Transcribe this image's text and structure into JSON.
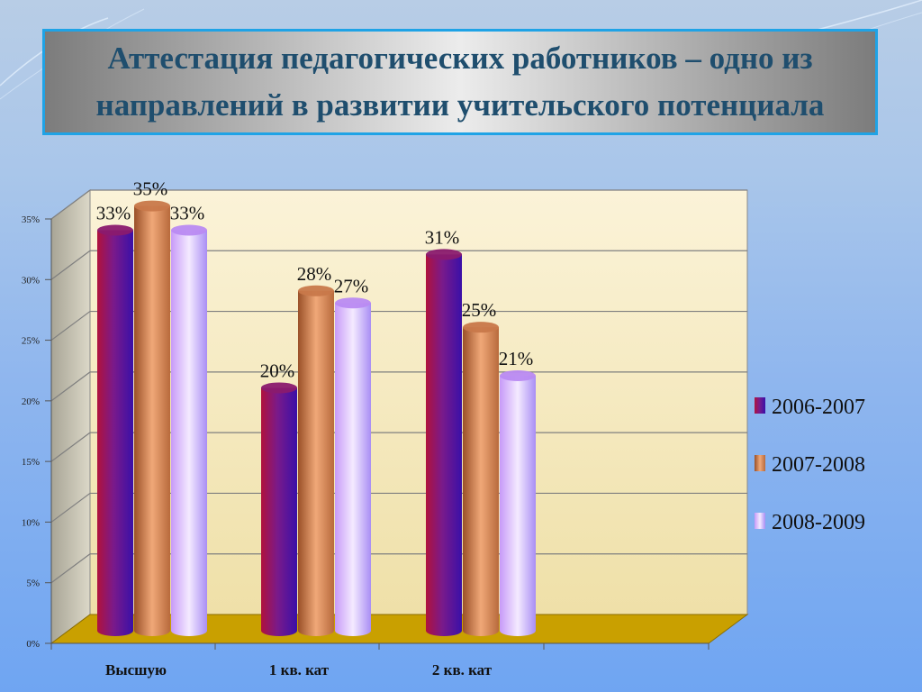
{
  "slide": {
    "title": "Аттестация педагогических работников – одно из направлений в развитии учительского потенциала"
  },
  "chart_data": {
    "type": "bar",
    "categories": [
      "Высшую",
      "1 кв. кат",
      "2 кв. кат"
    ],
    "series": [
      {
        "name": "2006-2007",
        "values": [
          33,
          20,
          31
        ],
        "labels": [
          "33%",
          "20%",
          "31%"
        ],
        "color": "#8a1a6e"
      },
      {
        "name": "2007-2008",
        "values": [
          35,
          28,
          25
        ],
        "labels": [
          "35%",
          "28%",
          "25%"
        ],
        "color": "#c8784a"
      },
      {
        "name": "2008-2009",
        "values": [
          33,
          27,
          21
        ],
        "labels": [
          "33%",
          "27%",
          "21%"
        ],
        "color": "#b98af2"
      }
    ],
    "y_ticks": [
      "0%",
      "5%",
      "10%",
      "15%",
      "20%",
      "25%",
      "30%",
      "35%"
    ],
    "ylim": [
      0,
      35
    ],
    "legend_position": "right",
    "grid": true,
    "colors": {
      "wall": "#f7ecc4",
      "floor": "#c8a000",
      "side_wall": "#ccc7b5"
    }
  }
}
